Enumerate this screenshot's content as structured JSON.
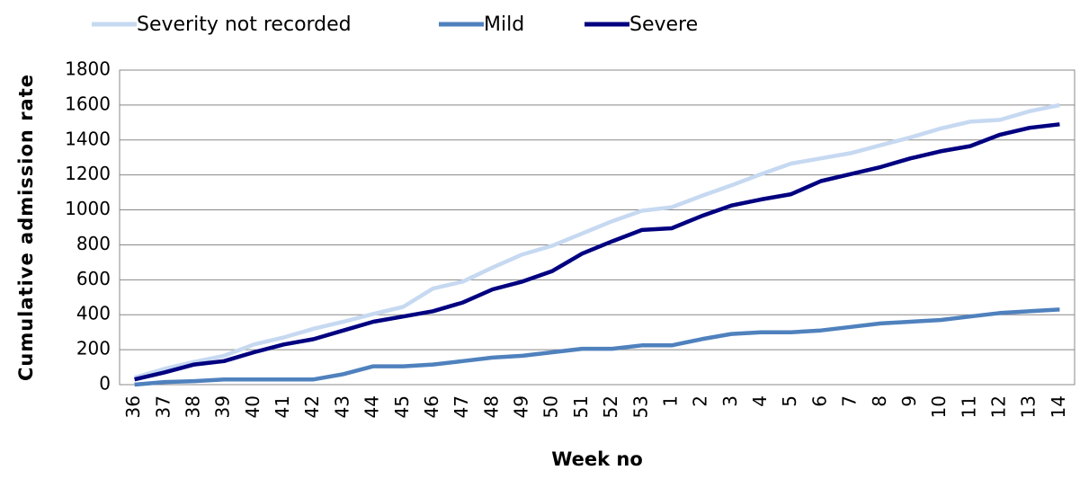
{
  "chart_data": {
    "type": "line",
    "x_label": "Week no",
    "y_label": "Cumulative admission rate",
    "categories": [
      "36",
      "37",
      "38",
      "39",
      "40",
      "41",
      "42",
      "43",
      "44",
      "45",
      "46",
      "47",
      "48",
      "49",
      "50",
      "51",
      "52",
      "53",
      "1",
      "2",
      "3",
      "4",
      "5",
      "6",
      "7",
      "8",
      "9",
      "10",
      "11",
      "12",
      "13",
      "14"
    ],
    "series": [
      {
        "name": "Severity not recorded",
        "color": "#c6d9f1",
        "values": [
          40,
          90,
          130,
          165,
          230,
          270,
          320,
          360,
          405,
          445,
          550,
          590,
          670,
          745,
          795,
          865,
          935,
          995,
          1015,
          1080,
          1140,
          1205,
          1265,
          1295,
          1325,
          1370,
          1415,
          1465,
          1505,
          1515,
          1565,
          1600
        ]
      },
      {
        "name": "Mild",
        "color": "#4f81bd",
        "values": [
          0,
          15,
          20,
          30,
          30,
          30,
          30,
          60,
          105,
          105,
          115,
          135,
          155,
          165,
          185,
          205,
          205,
          225,
          225,
          260,
          290,
          300,
          300,
          310,
          330,
          350,
          360,
          370,
          390,
          410,
          420,
          430
        ]
      },
      {
        "name": "Severe",
        "color": "#000080",
        "values": [
          30,
          70,
          115,
          135,
          185,
          230,
          260,
          310,
          360,
          390,
          420,
          470,
          545,
          590,
          650,
          750,
          820,
          885,
          895,
          965,
          1025,
          1060,
          1090,
          1165,
          1205,
          1245,
          1295,
          1335,
          1365,
          1430,
          1470,
          1490
        ]
      }
    ],
    "ylim": [
      0,
      1800
    ],
    "yticks": [
      0,
      200,
      400,
      600,
      800,
      1000,
      1200,
      1400,
      1600,
      1800
    ],
    "grid": true,
    "legend": "top"
  }
}
